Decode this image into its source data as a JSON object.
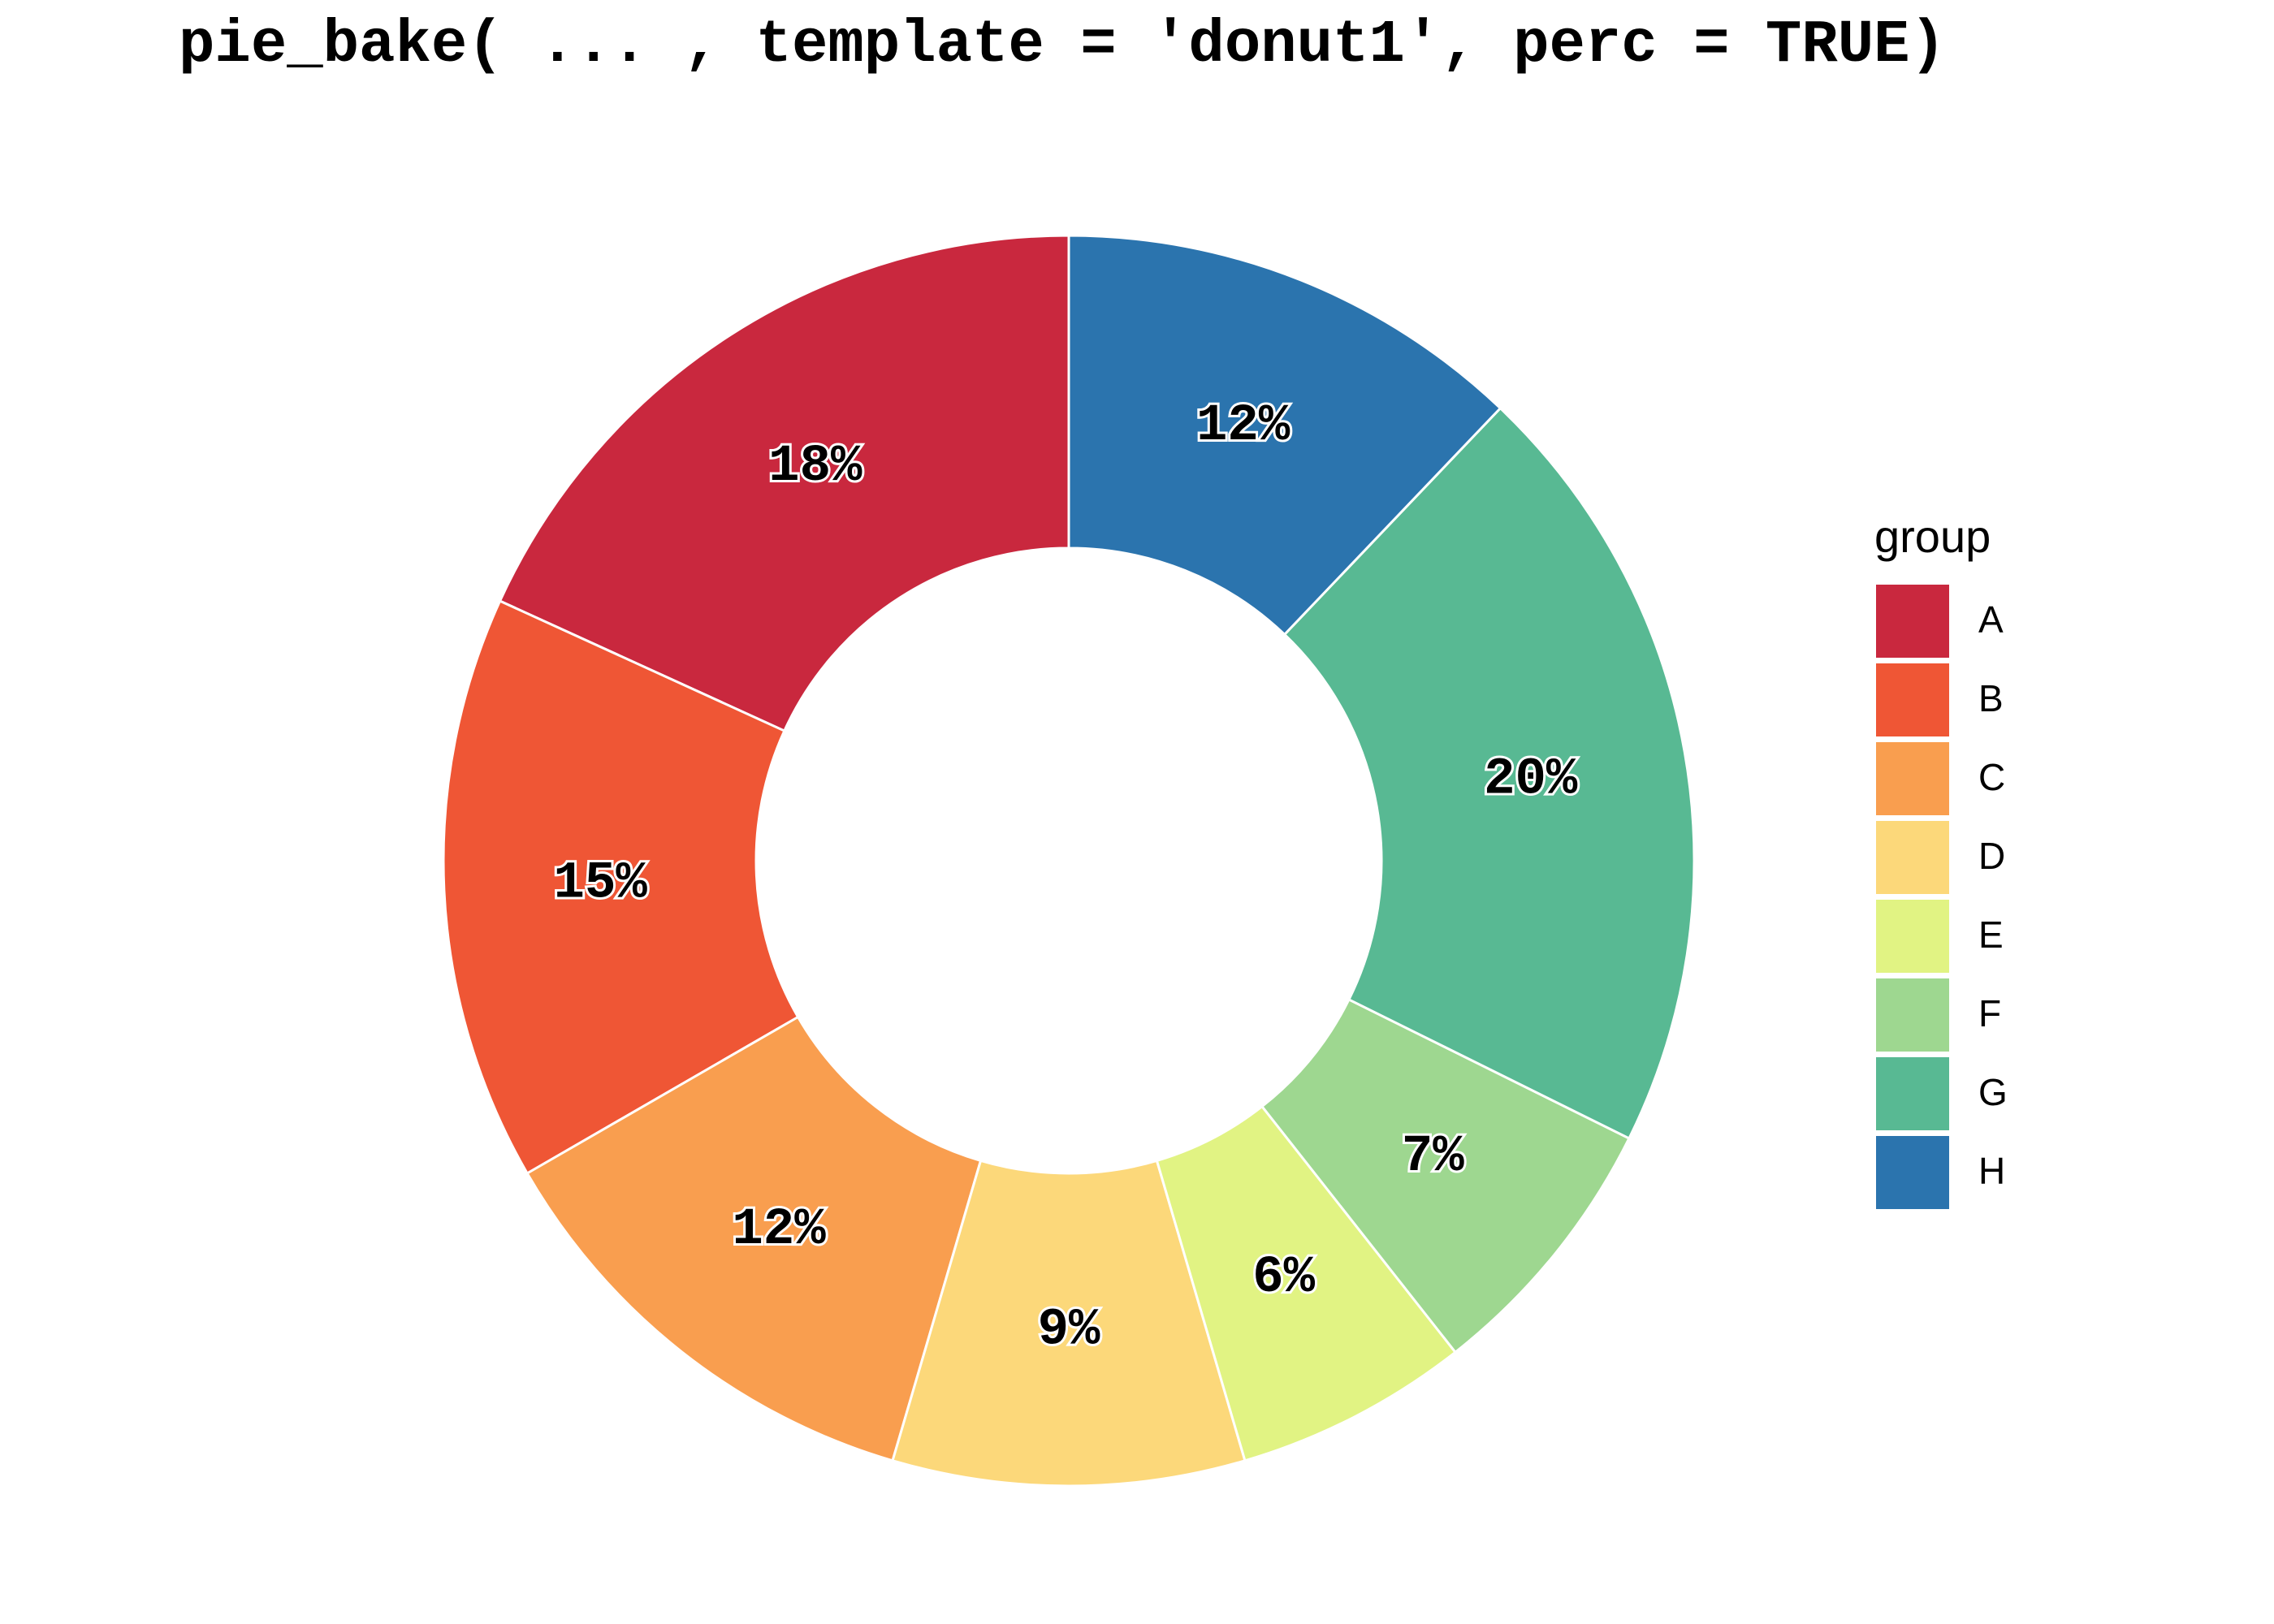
{
  "chart_data": {
    "type": "donut",
    "title": "pie_bake( ... , template = 'donut1', perc = TRUE)",
    "categories": [
      "A",
      "B",
      "C",
      "D",
      "E",
      "F",
      "G",
      "H"
    ],
    "values": [
      18,
      15,
      12,
      9,
      6,
      7,
      20,
      12
    ],
    "value_labels": [
      "18%",
      "15%",
      "12%",
      "9%",
      "6%",
      "7%",
      "20%",
      "12%"
    ],
    "colors": [
      "#c9283e",
      "#ef5635",
      "#f99e4f",
      "#fcd87a",
      "#e1f383",
      "#9ed790",
      "#58b993",
      "#2b74ae"
    ],
    "legend_title": "group",
    "legend": "right"
  }
}
